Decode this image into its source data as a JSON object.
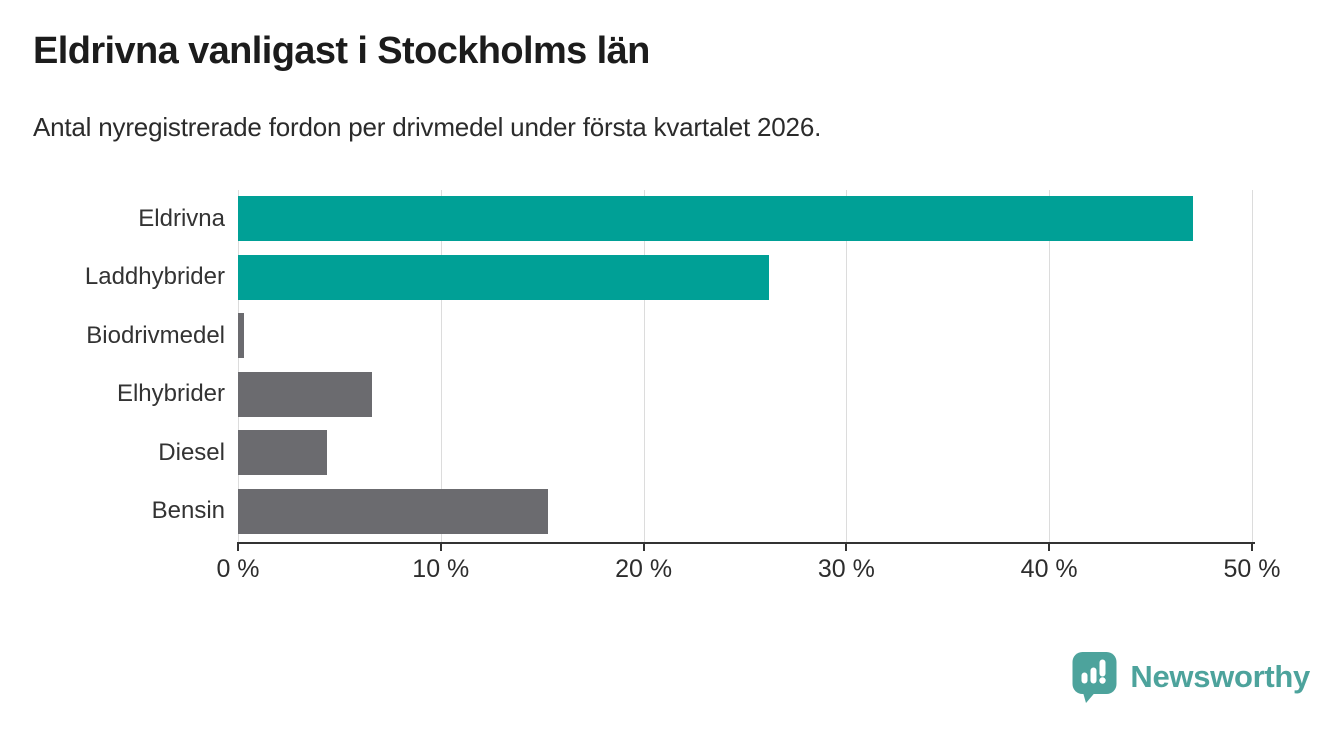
{
  "header": {
    "title": "Eldrivna vanligast i Stockholms län",
    "subtitle": "Antal nyregistrerade fordon per drivmedel under första kvartalet 2026."
  },
  "chart_data": {
    "type": "bar",
    "orientation": "horizontal",
    "title": "Eldrivna vanligast i Stockholms län",
    "subtitle": "Antal nyregistrerade fordon per drivmedel under första kvartalet 2026.",
    "categories": [
      "Eldrivna",
      "Laddhybrider",
      "Biodrivmedel",
      "Elhybrider",
      "Diesel",
      "Bensin"
    ],
    "values": [
      47.1,
      26.2,
      0.3,
      6.6,
      4.4,
      15.3
    ],
    "unit": "%",
    "bar_colors": [
      "#00a096",
      "#00a096",
      "#6b6b6f",
      "#6b6b6f",
      "#6b6b6f",
      "#6b6b6f"
    ],
    "xlabel": "",
    "ylabel": "",
    "xlim": [
      0,
      50.15
    ],
    "xticks": [
      0,
      10,
      20,
      30,
      40,
      50
    ],
    "xtick_labels": [
      "0 %",
      "10 %",
      "20 %",
      "30 %",
      "40 %",
      "50 %"
    ],
    "grid": "vertical",
    "legend_position": "none"
  },
  "footer": {
    "brand": "Newsworthy",
    "logo_icon": "newsworthy-speech-bubble-bar-chart-icon"
  },
  "colors": {
    "accent_teal": "#00a096",
    "bar_gray": "#6b6b6f",
    "gridline": "#dcdcdc",
    "axis": "#333333",
    "title_text": "#1c1c1c",
    "body_text": "#2b2b2b",
    "brand_teal": "#4da39c"
  }
}
